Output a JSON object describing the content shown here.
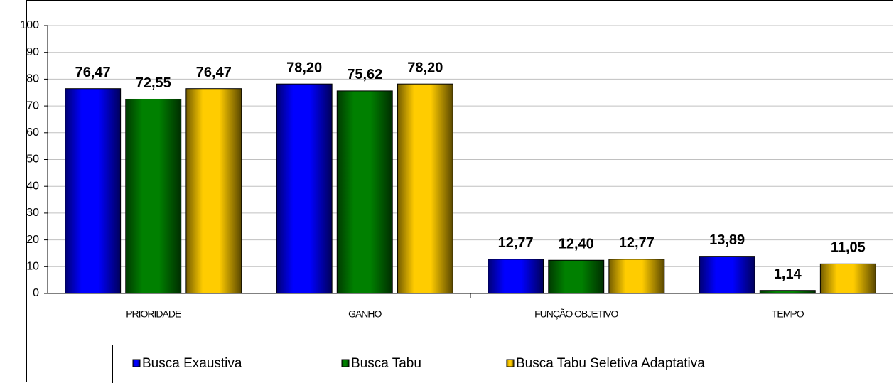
{
  "chart_data": {
    "type": "bar",
    "categories": [
      "PRIORIDADE",
      "GANHO",
      "FUNÇÃO OBJETIVO",
      "TEMPO"
    ],
    "series": [
      {
        "name": "Busca Exaustiva",
        "color": "#0000ff",
        "values": [
          76.47,
          78.2,
          12.77,
          13.89
        ],
        "value_labels": [
          "76,47",
          "78,20",
          "12,77",
          "13,89"
        ]
      },
      {
        "name": "Busca Tabu",
        "color": "#008000",
        "values": [
          72.55,
          75.62,
          12.4,
          1.14
        ],
        "value_labels": [
          "72,55",
          "75,62",
          "12,40",
          "1,14"
        ]
      },
      {
        "name": "Busca Tabu Seletiva Adaptativa",
        "color": "#ffcc00",
        "values": [
          76.47,
          78.2,
          12.77,
          11.05
        ],
        "value_labels": [
          "76,47",
          "78,20",
          "12,77",
          "11,05"
        ]
      }
    ],
    "ylim": [
      0,
      100
    ],
    "yticks": [
      0,
      10,
      20,
      30,
      40,
      50,
      60,
      70,
      80,
      90,
      100
    ],
    "grid": true,
    "legend": "bottom"
  }
}
